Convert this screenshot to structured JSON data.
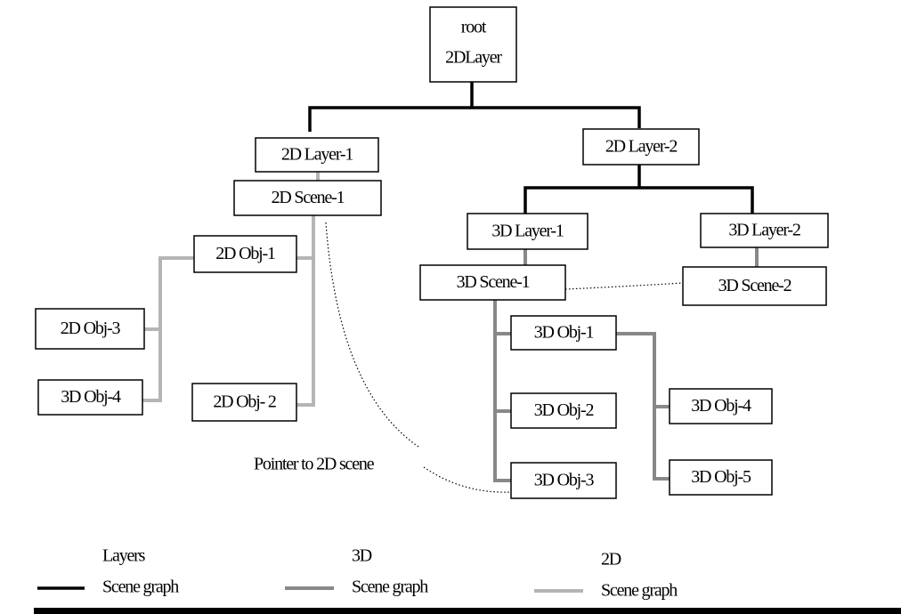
{
  "nodes": [
    {
      "lines": [
        "root",
        "2DLayer"
      ]
    },
    {
      "label": "2D Layer-1"
    },
    {
      "label": "2D Scene-1"
    },
    {
      "label": "2D Layer-2"
    },
    {
      "label": "3D Layer-1"
    },
    {
      "label": "3D Layer-2"
    },
    {
      "label": "3D Scene-1"
    },
    {
      "label": "3D Scene-2"
    },
    {
      "label": "2D Obj-1"
    },
    {
      "label": "2D Obj-3"
    },
    {
      "label": "3D Obj-4"
    },
    {
      "label": "2D Obj- 2"
    },
    {
      "label": "3D Obj-1"
    },
    {
      "label": "3D Obj-2"
    },
    {
      "label": "3D Obj-3"
    },
    {
      "label": "3D Obj-4"
    },
    {
      "label": "3D Obj-5"
    }
  ],
  "annotation": "Pointer to 2D scene",
  "legend": [
    {
      "title": "Layers",
      "label": "Scene graph"
    },
    {
      "title": "3D",
      "label": "Scene graph"
    },
    {
      "title": "2D",
      "label": "Scene graph"
    }
  ]
}
